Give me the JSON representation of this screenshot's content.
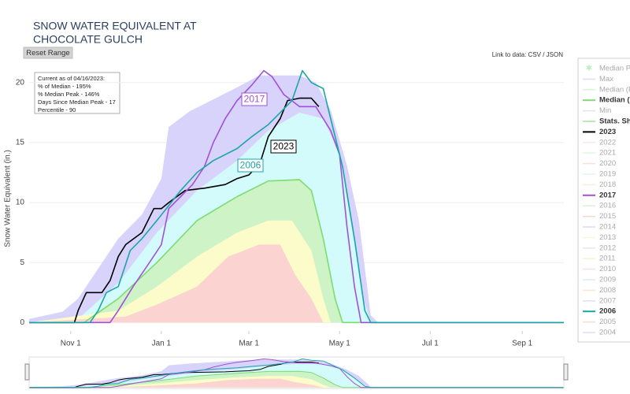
{
  "chart_data": {
    "type": "line",
    "title": [
      "SNOW WATER EQUIVALENT AT",
      "CHOCOLATE GULCH"
    ],
    "reset_button": "Reset Range",
    "data_link": "Link to data: CSV / JSON",
    "info": [
      "Current as of 04/16/2023:",
      "% of Median - 195%",
      "% Median Peak - 146%",
      "Days Since Median Peak - 17",
      "Percentile - 90"
    ],
    "y_label": "Snow Water Equivalent (in.)",
    "xlim": [
      3,
      363
    ],
    "xticks": [
      {
        "value": 31,
        "label": "Nov 1"
      },
      {
        "value": 92,
        "label": "Jan 1"
      },
      {
        "value": 151,
        "label": "Mar 1"
      },
      {
        "value": 212,
        "label": "May 1"
      },
      {
        "value": 273,
        "label": "Jul 1"
      },
      {
        "value": 335,
        "label": "Sep 1"
      }
    ],
    "ylim": [
      -0.7,
      21.3
    ],
    "yticks": [
      0,
      5,
      10,
      15,
      20
    ],
    "grid": true,
    "legend": "right",
    "series": [
      {
        "name": "Median Pe",
        "color": "#6fdc6f",
        "visible": false
      },
      {
        "name": "Max",
        "color": "#b9b2f3",
        "visible": false
      },
      {
        "name": "Median (P",
        "color": "#a8e8a8",
        "visible": false
      },
      {
        "name": "Median ('",
        "color": "#7ddc72",
        "visible": true,
        "x": [
          3,
          40,
          63,
          89,
          116,
          143,
          164,
          185,
          193,
          201,
          209,
          214,
          363
        ],
        "values": [
          0,
          0,
          2,
          5,
          8.5,
          10.5,
          11.8,
          11.9,
          11,
          7,
          2,
          0,
          0
        ]
      },
      {
        "name": "Min",
        "color": "#c9b8e8",
        "visible": false
      },
      {
        "name": "Stats. Sha",
        "color": "#b6ecb0",
        "visible": true,
        "bands": [
          {
            "color": "#d7d3fb",
            "x": [
              3,
              25.5,
              36,
              63,
              79,
              92,
              97,
              111,
              143,
              158,
              185,
              196,
              206,
              217,
              225,
              233,
              238,
              363
            ],
            "values": [
              0.3,
              0.9,
              2,
              7,
              9,
              12,
              16.3,
              17.6,
              19.6,
              20.6,
              20.6,
              20,
              17.7,
              13.1,
              8.5,
              0.6,
              0,
              0
            ]
          },
          {
            "color": "#d4fbfb",
            "x": [
              3,
              36,
              63,
              89,
              116,
              143,
              164,
              185,
              201,
              212,
              220,
              228,
              233,
              363
            ],
            "values": [
              0,
              0.3,
              3.3,
              7.5,
              11,
              13.5,
              16,
              17.5,
              17,
              14,
              8,
              2,
              0,
              0
            ]
          },
          {
            "color": "#cdf3c6",
            "x": [
              3,
              41,
              63,
              89,
              116,
              143,
              164,
              185,
              193,
              201,
              209,
              214,
              363
            ],
            "values": [
              0,
              0.3,
              2,
              5,
              8.5,
              10.5,
              11.8,
              12,
              11,
              7,
              2,
              0,
              0
            ]
          },
          {
            "color": "#fcfcca",
            "x": [
              3,
              63,
              89,
              116,
              143,
              164,
              180,
              193,
              201,
              206,
              363
            ],
            "values": [
              0,
              1,
              3,
              5.5,
              7.5,
              8.5,
              8.5,
              6,
              2,
              0,
              0
            ]
          },
          {
            "color": "#fbd3d1",
            "x": [
              3,
              68,
              89,
              116,
              137,
              158,
              172,
              182,
              193,
              201,
              363
            ],
            "values": [
              0,
              0.5,
              1.5,
              3,
              5.5,
              6.5,
              6.5,
              4,
              2,
              0,
              0
            ]
          }
        ]
      },
      {
        "name": "2023",
        "color": "#000000",
        "visible": true,
        "x": [
          3,
          33.5,
          36,
          41.5,
          52,
          57.5,
          63,
          68,
          79,
          87,
          92,
          97,
          108,
          121,
          135,
          143,
          151,
          158.5,
          164,
          172,
          177,
          185,
          193,
          198
        ],
        "values": [
          0,
          0,
          1,
          2.5,
          2.5,
          3.5,
          5.5,
          6.5,
          7.5,
          9.5,
          9.5,
          10,
          11,
          11.2,
          11.5,
          12,
          12.3,
          13.3,
          15.5,
          17,
          18.5,
          18.7,
          18.7,
          18
        ]
      },
      {
        "name": "2022",
        "color": "#f7c6e4",
        "visible": false
      },
      {
        "name": "2021",
        "color": "#c3efb1",
        "visible": false
      },
      {
        "name": "2020",
        "color": "#f6b7b4",
        "visible": false
      },
      {
        "name": "2019",
        "color": "#b7ebef",
        "visible": false
      },
      {
        "name": "2018",
        "color": "#f6d6a8",
        "visible": false
      },
      {
        "name": "2017",
        "color": "#a052d6",
        "visible": true,
        "x": [
          3,
          57.5,
          63,
          73,
          84,
          92,
          97,
          105,
          113,
          121,
          127,
          135,
          143,
          153,
          161,
          166.5,
          174.5,
          185,
          196,
          206,
          212,
          217,
          222,
          226.5,
          363
        ],
        "values": [
          0,
          0,
          1,
          3,
          5,
          6.5,
          9.5,
          10.5,
          11.5,
          13,
          15,
          17,
          18.5,
          19.8,
          21,
          20.5,
          19,
          18,
          18,
          16,
          14,
          8,
          3,
          0,
          0
        ]
      },
      {
        "name": "2016",
        "color": "#a9e3a0",
        "visible": false
      },
      {
        "name": "2015",
        "color": "#f1a39e",
        "visible": false
      },
      {
        "name": "2014",
        "color": "#c1a7ea",
        "visible": false
      },
      {
        "name": "2013",
        "color": "#f4eaa3",
        "visible": false
      },
      {
        "name": "2012",
        "color": "#d9c3f1",
        "visible": false
      },
      {
        "name": "2011",
        "color": "#d6efa5",
        "visible": false
      },
      {
        "name": "2010",
        "color": "#f5b9d2",
        "visible": false
      },
      {
        "name": "2009",
        "color": "#a9d8f0",
        "visible": false
      },
      {
        "name": "2008",
        "color": "#f6c9a9",
        "visible": false
      },
      {
        "name": "2007",
        "color": "#c7b3ec",
        "visible": false
      },
      {
        "name": "2006",
        "color": "#1aa6a8",
        "visible": true,
        "x": [
          3,
          44,
          49.5,
          55,
          63,
          71,
          79,
          89,
          105,
          116,
          127,
          143,
          153,
          164,
          172,
          180,
          187,
          193,
          201,
          206,
          214,
          222,
          229,
          233,
          363
        ],
        "values": [
          0,
          0,
          1,
          2.5,
          3,
          6,
          7,
          8.5,
          11,
          12.5,
          13.5,
          14.5,
          15.5,
          16.5,
          17.5,
          18.5,
          21,
          20,
          19.5,
          17,
          13,
          7,
          1,
          0,
          0
        ]
      },
      {
        "name": "2005",
        "color": "#f2a99a",
        "visible": false
      },
      {
        "name": "2004",
        "color": "#bdb5f1",
        "visible": false
      }
    ]
  }
}
